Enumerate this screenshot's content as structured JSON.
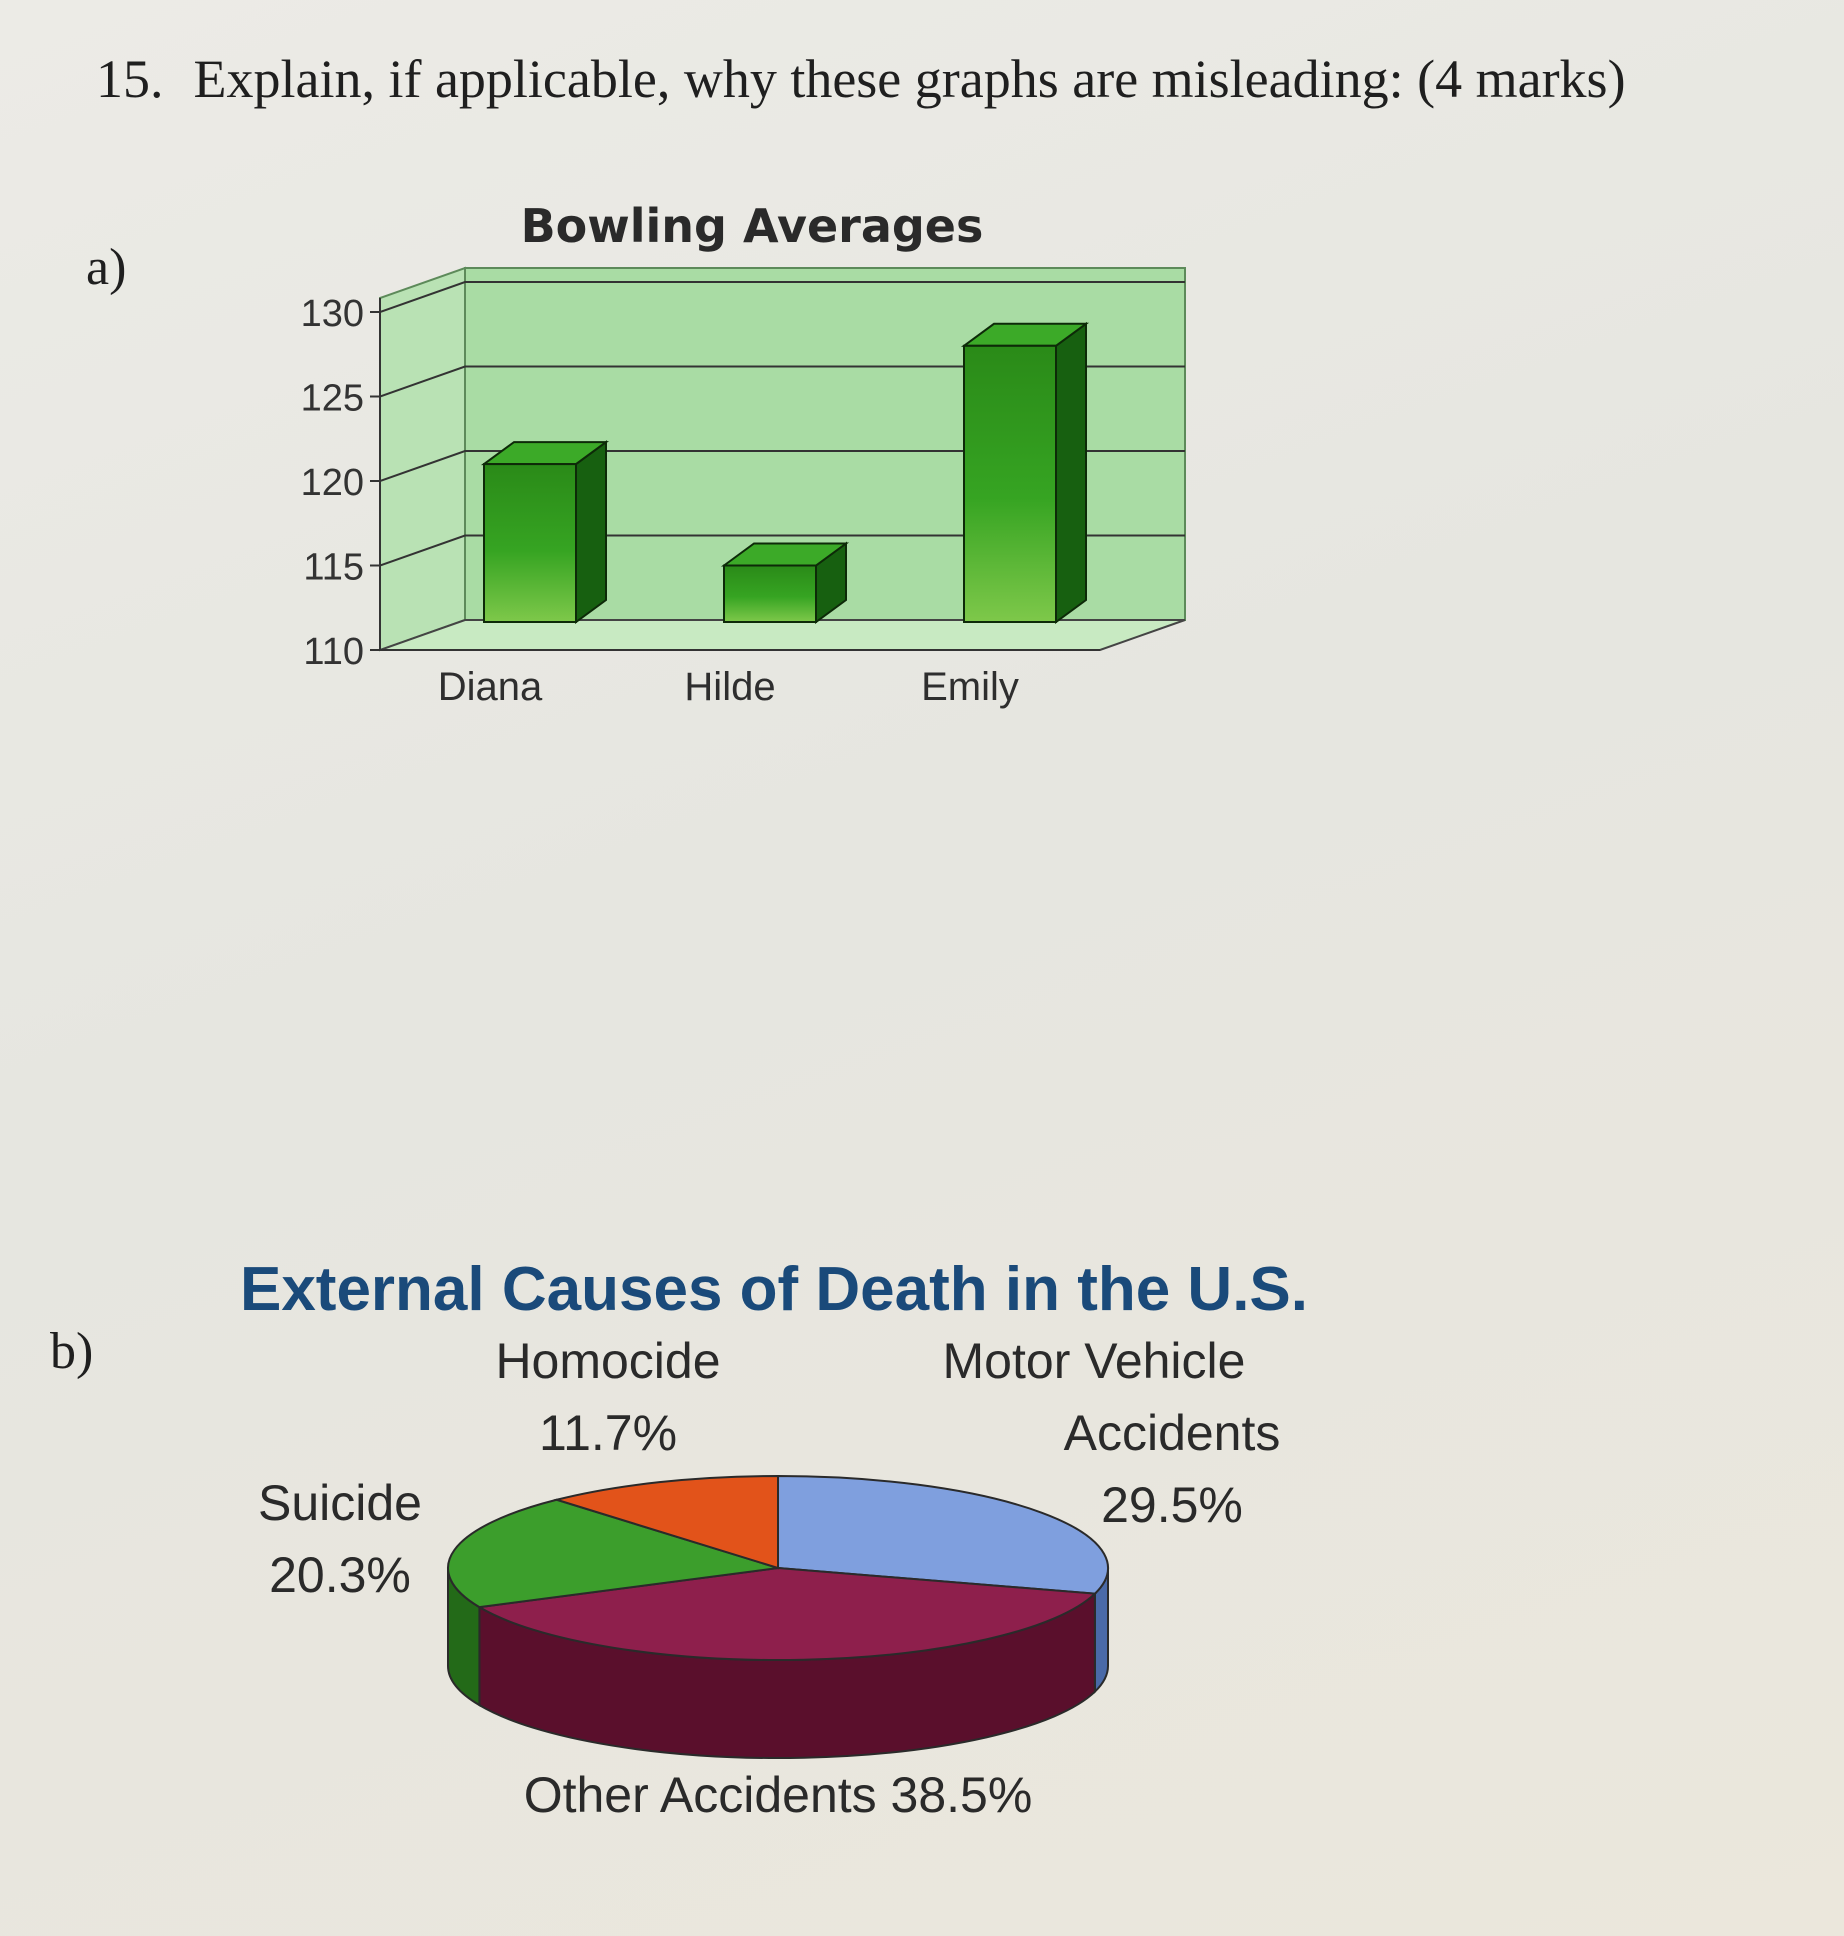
{
  "question": {
    "number": "15.",
    "text": "Explain, if applicable, why these graphs are misleading: (4 marks)"
  },
  "parts": {
    "a": "a)",
    "b": "b)"
  },
  "chart_data": [
    {
      "type": "bar",
      "title": "Bowling Averages",
      "categories": [
        "Diana",
        "Hilde",
        "Emily"
      ],
      "values": [
        121,
        115,
        128
      ],
      "ylim": [
        110,
        130
      ],
      "yticks": [
        110,
        115,
        120,
        125,
        130
      ],
      "xlabel": "",
      "ylabel": "",
      "grid": true,
      "legend": "none",
      "colors": {
        "bar": "#2f9a1c",
        "bar_dark": "#176010",
        "bar_top": "#3caa28",
        "plot_bg": "#a9dca4",
        "floor": "#c8eac2"
      }
    },
    {
      "type": "pie",
      "title": "External Causes of Death in the U.S.",
      "slices": [
        {
          "name": "Motor Vehicle Accidents",
          "value": 29.5,
          "label_lines": [
            "Motor Vehicle",
            "Accidents",
            "29.5%"
          ],
          "color": "#7f9fde",
          "side": "#4a6aa8"
        },
        {
          "name": "Other Accidents",
          "value": 38.5,
          "label_lines": [
            "Other Accidents  38.5%"
          ],
          "color": "#8e1f4c",
          "side": "#5a0f2c"
        },
        {
          "name": "Suicide",
          "value": 20.3,
          "label_lines": [
            "Suicide",
            "20.3%"
          ],
          "color": "#3c9e2c",
          "side": "#236a18"
        },
        {
          "name": "Homocide",
          "value": 11.7,
          "label_lines": [
            "Homocide",
            "11.7%"
          ],
          "color": "#e2531a",
          "side": "#a8380c"
        }
      ],
      "legend": "none",
      "title_color": "#1a4a7a"
    }
  ]
}
